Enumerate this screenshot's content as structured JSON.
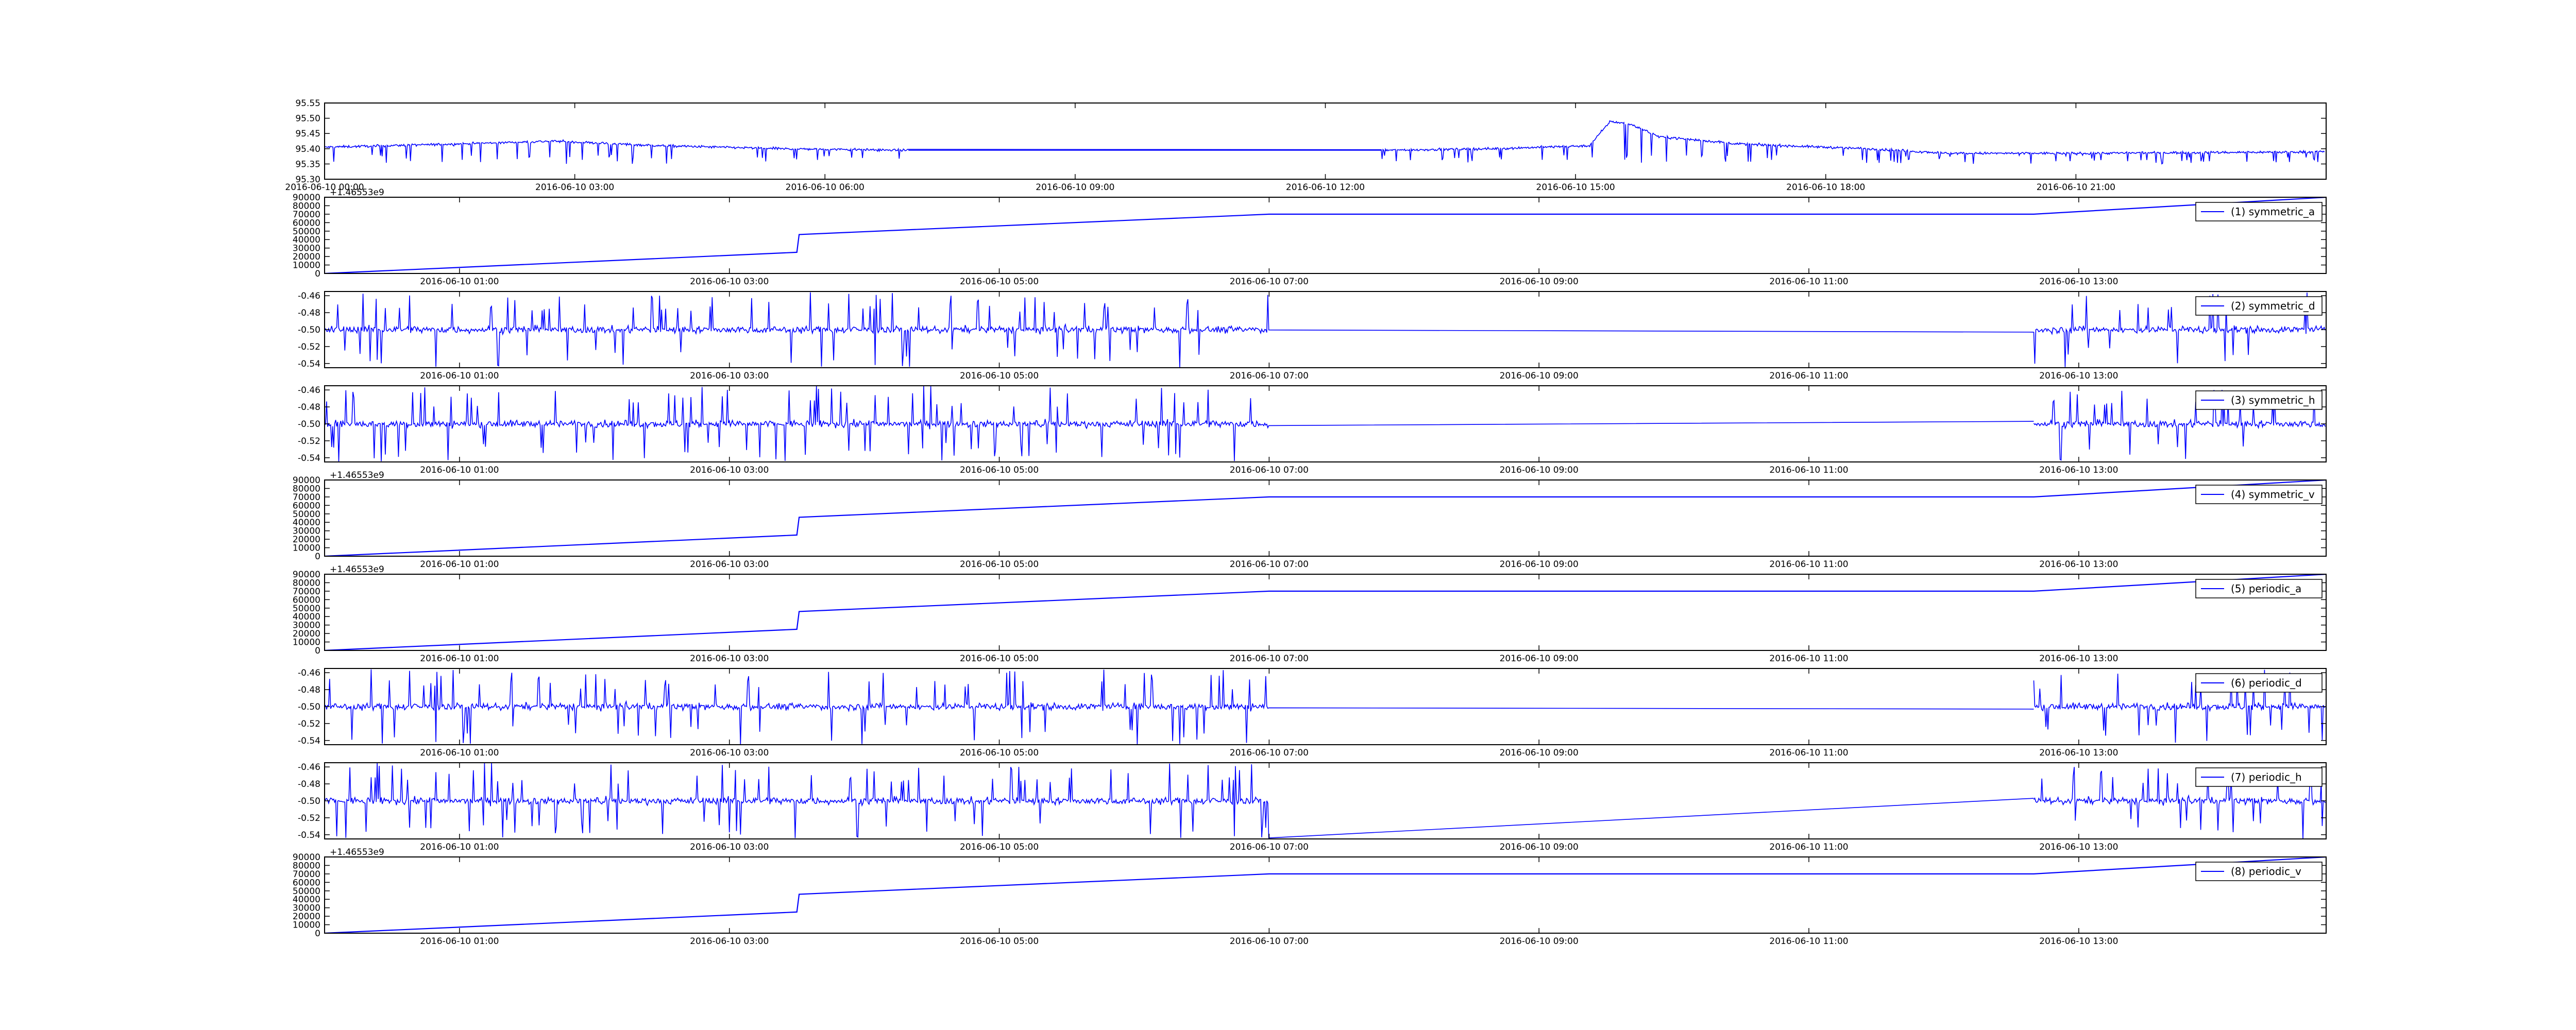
{
  "figure": {
    "line_color": "#0000ff",
    "background": "#ffffff",
    "axis_color": "#000000"
  },
  "chart_data": [
    {
      "type": "line",
      "title": "",
      "x_kind": "time",
      "xlim": [
        "2016-06-10 00:00",
        "2016-06-11 00:00"
      ],
      "xticks": [
        "2016-06-10 00:00",
        "2016-06-10 03:00",
        "2016-06-10 06:00",
        "2016-06-10 09:00",
        "2016-06-10 12:00",
        "2016-06-10 15:00",
        "2016-06-10 18:00",
        "2016-06-10 21:00"
      ],
      "ylim": [
        95.3,
        95.55
      ],
      "yticks": [
        "95.30",
        "95.35",
        "95.40",
        "95.45",
        "95.50",
        "95.55"
      ],
      "legend": null,
      "series": [
        {
          "kind": "noisy",
          "base": [
            [
              "2016-06-10 00:00",
              95.405
            ],
            [
              "2016-06-10 01:30",
              95.415
            ],
            [
              "2016-06-10 02:45",
              95.425
            ],
            [
              "2016-06-10 04:00",
              95.41
            ],
            [
              "2016-06-10 05:30",
              95.4
            ],
            [
              "2016-06-10 07:00",
              95.395
            ],
            [
              "2016-06-10 12:40",
              95.395
            ],
            [
              "2016-06-10 14:00",
              95.4
            ],
            [
              "2016-06-10 15:10",
              95.41
            ],
            [
              "2016-06-10 15:25",
              95.49
            ],
            [
              "2016-06-10 15:40",
              95.48
            ],
            [
              "2016-06-10 16:00",
              95.44
            ],
            [
              "2016-06-10 17:00",
              95.415
            ],
            [
              "2016-06-10 18:30",
              95.4
            ],
            [
              "2016-06-10 19:30",
              95.385
            ],
            [
              "2016-06-10 21:00",
              95.385
            ],
            [
              "2016-06-10 23:59",
              95.39
            ]
          ],
          "gaps": [
            [
              "2016-06-10 07:00",
              "2016-06-10 12:40"
            ]
          ],
          "noise": 0.008,
          "spike_depth": [
            95.35,
            95.38
          ]
        }
      ]
    },
    {
      "type": "line",
      "x_kind": "epoch",
      "offset_label": "+1.46553e9",
      "overlap_tick_label": "2016-06-10 00:00",
      "xlim": [
        "2016-06-10 00:00",
        "2016-06-10 14:50"
      ],
      "xticks": [
        "2016-06-10 01:00",
        "2016-06-10 03:00",
        "2016-06-10 05:00",
        "2016-06-10 07:00",
        "2016-06-10 09:00",
        "2016-06-10 11:00",
        "2016-06-10 13:00"
      ],
      "ylim": [
        0,
        90000
      ],
      "yticks": [
        "0",
        "10000",
        "20000",
        "30000",
        "40000",
        "50000",
        "60000",
        "70000",
        "80000",
        "90000"
      ],
      "legend": "(1) symmetric_a",
      "series": [
        {
          "kind": "ramp",
          "label": "(1) symmetric_a"
        }
      ]
    },
    {
      "type": "line",
      "x_kind": "time",
      "xlim": [
        "2016-06-10 00:00",
        "2016-06-10 14:50"
      ],
      "xticks": [
        "2016-06-10 01:00",
        "2016-06-10 03:00",
        "2016-06-10 05:00",
        "2016-06-10 07:00",
        "2016-06-10 09:00",
        "2016-06-10 11:00",
        "2016-06-10 13:00"
      ],
      "ylim": [
        -0.545,
        -0.455
      ],
      "yticks": [
        "-0.54",
        "-0.52",
        "-0.50",
        "-0.48",
        "-0.46"
      ],
      "legend": "(2) symmetric_d",
      "series": [
        {
          "kind": "detail",
          "label": "(2) symmetric_d",
          "level": -0.5,
          "gap": [
            "2016-06-10 07:00",
            "2016-06-10 12:40"
          ],
          "gap_level_end": -0.503
        }
      ]
    },
    {
      "type": "line",
      "x_kind": "time",
      "xlim": [
        "2016-06-10 00:00",
        "2016-06-10 14:50"
      ],
      "xticks": [
        "2016-06-10 01:00",
        "2016-06-10 03:00",
        "2016-06-10 05:00",
        "2016-06-10 07:00",
        "2016-06-10 09:00",
        "2016-06-10 11:00",
        "2016-06-10 13:00"
      ],
      "ylim": [
        -0.545,
        -0.455
      ],
      "yticks": [
        "-0.54",
        "-0.52",
        "-0.50",
        "-0.48",
        "-0.46"
      ],
      "legend": "(3) symmetric_h",
      "series": [
        {
          "kind": "detail",
          "label": "(3) symmetric_h",
          "level": -0.5,
          "gap": [
            "2016-06-10 07:00",
            "2016-06-10 12:40"
          ],
          "gap_level_end": -0.497
        }
      ]
    },
    {
      "type": "line",
      "x_kind": "epoch",
      "offset_label": "+1.46553e9",
      "xlim": [
        "2016-06-10 00:00",
        "2016-06-10 14:50"
      ],
      "xticks": [
        "2016-06-10 01:00",
        "2016-06-10 03:00",
        "2016-06-10 05:00",
        "2016-06-10 07:00",
        "2016-06-10 09:00",
        "2016-06-10 11:00",
        "2016-06-10 13:00"
      ],
      "ylim": [
        0,
        90000
      ],
      "yticks": [
        "0",
        "10000",
        "20000",
        "30000",
        "40000",
        "50000",
        "60000",
        "70000",
        "80000",
        "90000"
      ],
      "legend": "(4) symmetric_v",
      "series": [
        {
          "kind": "ramp",
          "label": "(4) symmetric_v"
        }
      ]
    },
    {
      "type": "line",
      "x_kind": "epoch",
      "offset_label": "+1.46553e9",
      "xlim": [
        "2016-06-10 00:00",
        "2016-06-10 14:50"
      ],
      "xticks": [
        "2016-06-10 01:00",
        "2016-06-10 03:00",
        "2016-06-10 05:00",
        "2016-06-10 07:00",
        "2016-06-10 09:00",
        "2016-06-10 11:00",
        "2016-06-10 13:00"
      ],
      "ylim": [
        0,
        90000
      ],
      "yticks": [
        "0",
        "10000",
        "20000",
        "30000",
        "40000",
        "50000",
        "60000",
        "70000",
        "80000",
        "90000"
      ],
      "legend": "(5) periodic_a",
      "series": [
        {
          "kind": "ramp",
          "label": "(5) periodic_a"
        }
      ]
    },
    {
      "type": "line",
      "x_kind": "time",
      "xlim": [
        "2016-06-10 00:00",
        "2016-06-10 14:50"
      ],
      "xticks": [
        "2016-06-10 01:00",
        "2016-06-10 03:00",
        "2016-06-10 05:00",
        "2016-06-10 07:00",
        "2016-06-10 09:00",
        "2016-06-10 11:00",
        "2016-06-10 13:00"
      ],
      "ylim": [
        -0.545,
        -0.455
      ],
      "yticks": [
        "-0.54",
        "-0.52",
        "-0.50",
        "-0.48",
        "-0.46"
      ],
      "legend": "(6) periodic_d",
      "series": [
        {
          "kind": "detail",
          "label": "(6) periodic_d",
          "level": -0.5,
          "gap": [
            "2016-06-10 07:00",
            "2016-06-10 12:40"
          ],
          "gap_level_end": -0.503
        }
      ]
    },
    {
      "type": "line",
      "x_kind": "time",
      "xlim": [
        "2016-06-10 00:00",
        "2016-06-10 14:50"
      ],
      "xticks": [
        "2016-06-10 01:00",
        "2016-06-10 03:00",
        "2016-06-10 05:00",
        "2016-06-10 07:00",
        "2016-06-10 09:00",
        "2016-06-10 11:00",
        "2016-06-10 13:00"
      ],
      "ylim": [
        -0.545,
        -0.455
      ],
      "yticks": [
        "-0.54",
        "-0.52",
        "-0.50",
        "-0.48",
        "-0.46"
      ],
      "legend": "(7) periodic_h",
      "series": [
        {
          "kind": "detail",
          "label": "(7) periodic_h",
          "level": -0.5,
          "gap": [
            "2016-06-10 07:00",
            "2016-06-10 12:40"
          ],
          "gap_level_end": -0.497
        }
      ]
    },
    {
      "type": "line",
      "x_kind": "epoch",
      "offset_label": "+1.46553e9",
      "xlim": [
        "2016-06-10 00:00",
        "2016-06-10 14:50"
      ],
      "xticks": [
        "2016-06-10 01:00",
        "2016-06-10 03:00",
        "2016-06-10 05:00",
        "2016-06-10 07:00",
        "2016-06-10 09:00",
        "2016-06-10 11:00",
        "2016-06-10 13:00"
      ],
      "ylim": [
        0,
        90000
      ],
      "yticks": [
        "0",
        "10000",
        "20000",
        "30000",
        "40000",
        "50000",
        "60000",
        "70000",
        "80000",
        "90000"
      ],
      "legend": "(8) periodic_v",
      "series": [
        {
          "kind": "ramp",
          "label": "(8) periodic_v"
        }
      ]
    }
  ],
  "ramp_points": [
    [
      "2016-06-10 00:00",
      0
    ],
    [
      "2016-06-10 03:30",
      25000
    ],
    [
      "2016-06-10 03:31",
      46000
    ],
    [
      "2016-06-10 07:00",
      70000
    ],
    [
      "2016-06-10 12:40",
      70000
    ],
    [
      "2016-06-10 14:50",
      90000
    ]
  ]
}
